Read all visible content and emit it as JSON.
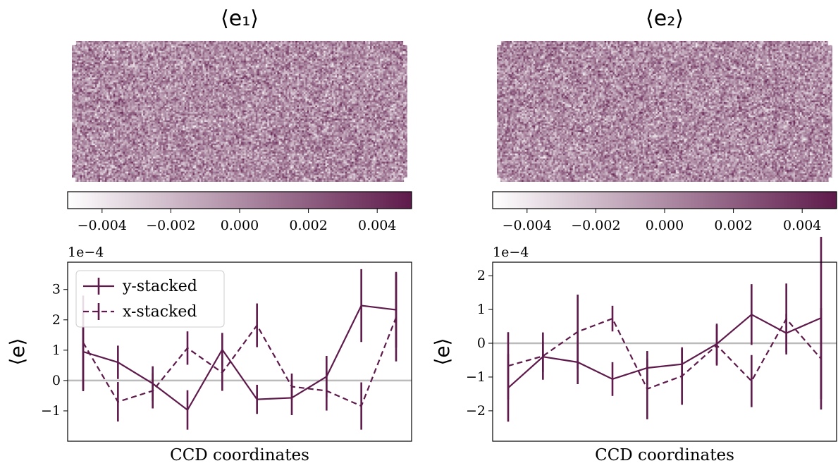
{
  "colors": {
    "series": "#5e1a4b",
    "zero_line": "#bbbbbb",
    "cmap_low": "#ffffff",
    "cmap_high": "#5e1a4b"
  },
  "chart_data": [
    {
      "type": "heatmap",
      "title": "⟨e₁⟩",
      "description": "per-pixel mean e1 map over the CCD (noise-like)",
      "colorbar": {
        "range": [
          -0.005,
          0.005
        ],
        "ticks": [
          "−0.004",
          "−0.002",
          "0.000",
          "0.002",
          "0.004"
        ],
        "tick_values": [
          -0.004,
          -0.002,
          0.0,
          0.002,
          0.004
        ]
      }
    },
    {
      "type": "heatmap",
      "title": "⟨e₂⟩",
      "description": "per-pixel mean e2 map over the CCD (noise-like)",
      "colorbar": {
        "range": [
          -0.005,
          0.005
        ],
        "ticks": [
          "−0.004",
          "−0.002",
          "0.000",
          "0.002",
          "0.004"
        ],
        "tick_values": [
          -0.004,
          -0.002,
          0.0,
          0.002,
          0.004
        ]
      }
    },
    {
      "type": "line",
      "xlabel": "CCD coordinates",
      "ylabel": "⟨e⟩",
      "yscale_label": "1e−4",
      "ylim": [
        -2.0,
        3.9
      ],
      "yticks": [
        -1,
        0,
        1,
        2,
        3
      ],
      "ytick_labels": [
        "−1",
        "0",
        "1",
        "2",
        "3"
      ],
      "zero_line": true,
      "legend": "top-left",
      "x": [
        1,
        2,
        3,
        4,
        5,
        6,
        7,
        8,
        9,
        10
      ],
      "series": [
        {
          "name": "y-stacked",
          "style": "solid",
          "values": [
            0.95,
            0.6,
            -0.1,
            -0.97,
            1.02,
            -0.62,
            -0.57,
            0.13,
            2.47,
            2.33
          ],
          "errors": [
            1.3,
            0.55,
            0.57,
            0.65,
            0.55,
            0.48,
            0.57,
            0.68,
            1.2,
            1.25
          ]
        },
        {
          "name": "x-stacked",
          "style": "dashed",
          "values": [
            1.25,
            -0.7,
            -0.34,
            1.07,
            0.26,
            1.82,
            -0.2,
            -0.34,
            -0.84,
            2.08
          ],
          "errors": [
            1.55,
            0.65,
            0.58,
            0.55,
            0.6,
            0.72,
            0.43,
            0.65,
            0.78,
            1.45
          ]
        }
      ]
    },
    {
      "type": "line",
      "xlabel": "CCD coordinates",
      "ylabel": "⟨e⟩",
      "yscale_label": "1e−4",
      "ylim": [
        -2.9,
        2.4
      ],
      "yticks": [
        -2,
        -1,
        0,
        1,
        2
      ],
      "ytick_labels": [
        "−2",
        "−1",
        "0",
        "1",
        "2"
      ],
      "zero_line": true,
      "x": [
        1,
        2,
        3,
        4,
        5,
        6,
        7,
        8,
        9,
        10
      ],
      "series": [
        {
          "name": "y-stacked",
          "style": "solid",
          "values": [
            -1.32,
            -0.4,
            -0.56,
            -1.06,
            -0.73,
            -0.62,
            -0.02,
            0.85,
            0.3,
            0.75
          ],
          "errors": [
            1.0,
            0.45,
            0.65,
            0.5,
            0.5,
            0.45,
            0.6,
            0.9,
            0.57,
            2.4
          ]
        },
        {
          "name": "x-stacked",
          "style": "dashed",
          "values": [
            -0.67,
            -0.38,
            0.34,
            0.73,
            -1.35,
            -0.97,
            -0.06,
            -1.12,
            0.72,
            -0.46
          ],
          "errors": [
            1.0,
            0.7,
            1.1,
            0.38,
            0.9,
            0.85,
            0.6,
            0.77,
            1.05,
            1.5
          ]
        }
      ]
    }
  ]
}
